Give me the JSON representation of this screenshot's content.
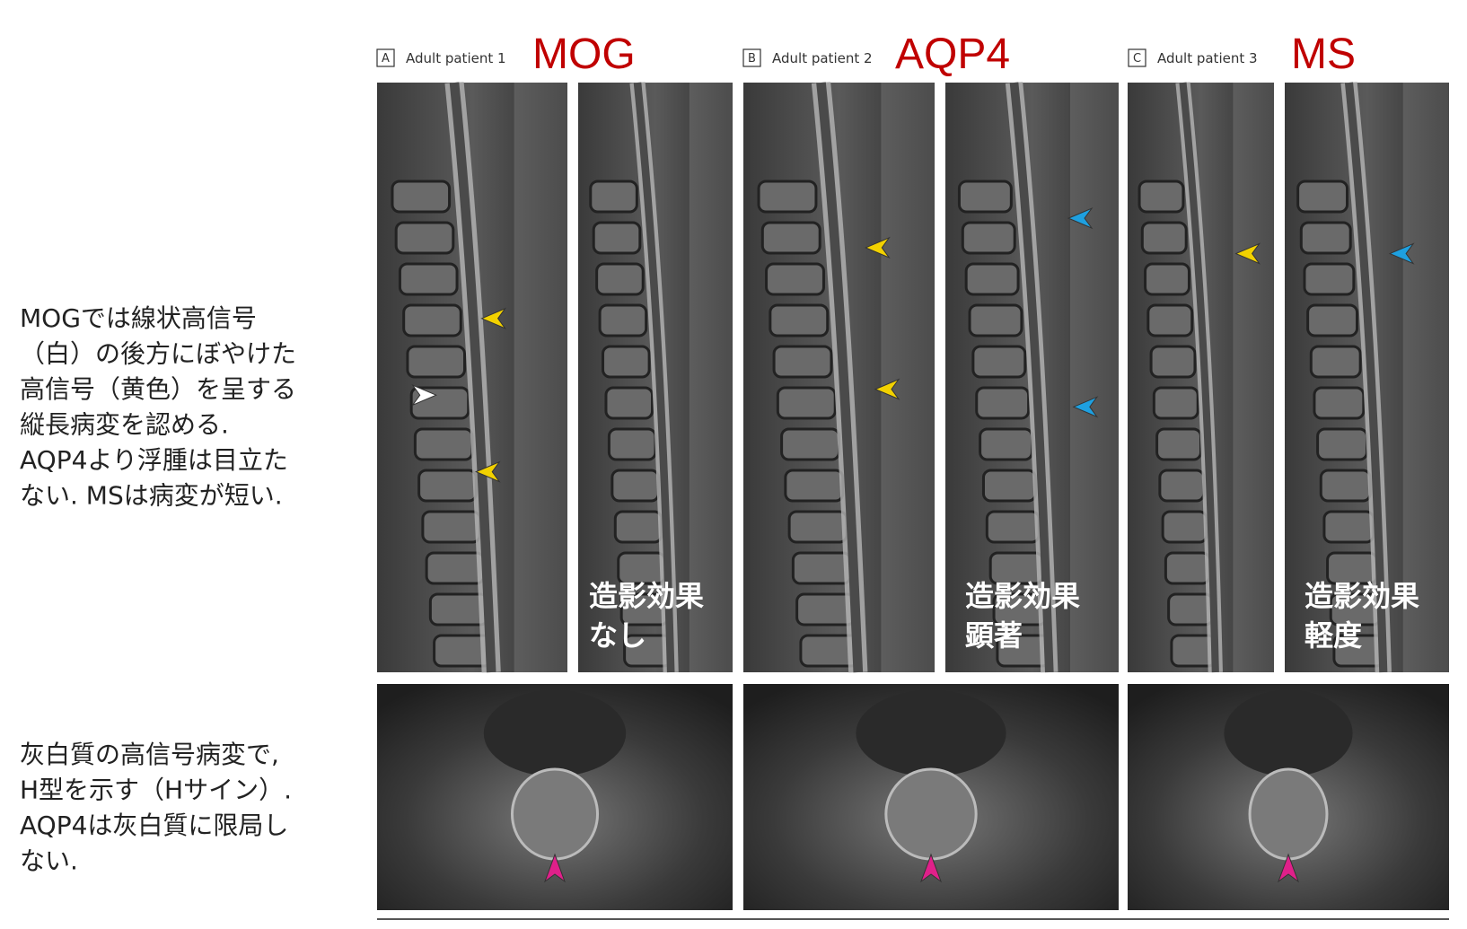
{
  "notes": {
    "sagittal": [
      "MOGでは線状高信号",
      "（白）の後方にぼやけた",
      "高信号（黄色）を呈する",
      "縦長病変を認める.",
      "AQP4より浮腫は目立た",
      "ない.  MSは病変が短い."
    ],
    "axial": [
      "灰白質の高信号病変で,",
      "H型を示す（Hサイン）.",
      "AQP4は灰白質に限局し",
      "ない."
    ]
  },
  "panels": [
    {
      "letter": "A",
      "patient": "Adult patient 1",
      "disease": "MOG",
      "enhancement": [
        "造影効果",
        "なし"
      ]
    },
    {
      "letter": "B",
      "patient": "Adult patient 2",
      "disease": "AQP4",
      "enhancement": [
        "造影効果",
        "顕著"
      ]
    },
    {
      "letter": "C",
      "patient": "Adult patient 3",
      "disease": "MS",
      "enhancement": [
        "造影効果",
        "軽度"
      ]
    }
  ]
}
